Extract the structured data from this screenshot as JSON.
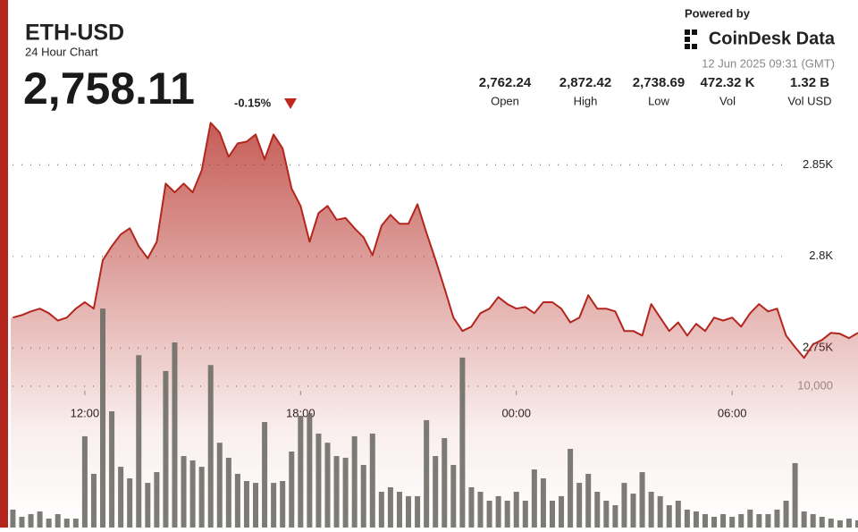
{
  "header": {
    "title": "ETH-USD",
    "subtitle": "24 Hour Chart",
    "price": "2,758.11",
    "change": "-0.15%",
    "powered_by": "Powered by",
    "brand": "CoinDesk Data",
    "timestamp": "12 Jun 2025 09:31 (GMT)",
    "stats": [
      {
        "value": "2,762.24",
        "label": "Open"
      },
      {
        "value": "2,872.42",
        "label": "High"
      },
      {
        "value": "2,738.69",
        "label": "Low"
      },
      {
        "value": "472.32 K",
        "label": "Vol"
      },
      {
        "value": "1.32 B",
        "label": "Vol USD"
      }
    ]
  },
  "chart_data": {
    "type": "line",
    "x": [
      10,
      10.25,
      10.5,
      10.75,
      11,
      11.25,
      11.5,
      11.75,
      12,
      12.25,
      12.5,
      12.75,
      13,
      13.25,
      13.5,
      13.75,
      14,
      14.25,
      14.5,
      14.75,
      15,
      15.25,
      15.5,
      15.75,
      16,
      16.25,
      16.5,
      16.75,
      17,
      17.25,
      17.5,
      17.75,
      18,
      18.25,
      18.5,
      18.75,
      19,
      19.25,
      19.5,
      19.75,
      20,
      20.25,
      20.5,
      20.75,
      21,
      21.25,
      21.5,
      21.75,
      22,
      22.25,
      22.5,
      22.75,
      23,
      23.25,
      23.5,
      23.75,
      24,
      24.25,
      24.5,
      24.75,
      25,
      25.25,
      25.5,
      25.75,
      26,
      26.25,
      26.5,
      26.75,
      27,
      27.25,
      27.5,
      27.75,
      28,
      28.25,
      28.5,
      28.75,
      29,
      29.25,
      29.5,
      29.75,
      30,
      30.25,
      30.5,
      30.75,
      31,
      31.25,
      31.5,
      31.75,
      32,
      32.25,
      32.5,
      32.75,
      33,
      33.25,
      33.5
    ],
    "xlim": [
      9.94,
      33.5
    ],
    "xticks": [
      {
        "value": 12,
        "label": "12:00"
      },
      {
        "value": 18,
        "label": "18:00"
      },
      {
        "value": 24,
        "label": "00:00"
      },
      {
        "value": 30,
        "label": "06:00"
      }
    ],
    "ylim": [
      2652,
      2940
    ],
    "yticks": [
      {
        "value": 2750,
        "label": "2.75K"
      },
      {
        "value": 2800,
        "label": "2.8K"
      },
      {
        "value": 2850,
        "label": "2.85K"
      }
    ],
    "y2lim": [
      0,
      37340
    ],
    "y2ticks": [
      {
        "value": 10000,
        "label": "10,000"
      }
    ],
    "grid": true,
    "series": [
      {
        "color": "#b3261e",
        "values": [
          2766.6,
          2768,
          2770,
          2771.5,
          2769,
          2765,
          2766.6,
          2771.5,
          2775,
          2771.5,
          2798,
          2805.6,
          2812,
          2815.4,
          2805.6,
          2799,
          2808,
          2839.8,
          2835,
          2839.8,
          2835,
          2847,
          2873,
          2867.6,
          2854.4,
          2861.7,
          2862.7,
          2866.6,
          2853,
          2866.6,
          2859,
          2837,
          2827.6,
          2808,
          2823.7,
          2827.6,
          2820,
          2821,
          2815.4,
          2810.5,
          2800.7,
          2816.8,
          2822.7,
          2817.8,
          2817.8,
          2828.5,
          2813,
          2798.3,
          2782.7,
          2766.6,
          2759.3,
          2761.7,
          2769,
          2771.5,
          2777.8,
          2774,
          2771.5,
          2772.4,
          2769,
          2775,
          2775,
          2771.5,
          2764,
          2766.6,
          2778.8,
          2771.5,
          2771.5,
          2770,
          2759.3,
          2759.3,
          2756.8,
          2774,
          2766.6,
          2759.3,
          2764,
          2756.8,
          2763.2,
          2759.3,
          2766.6,
          2765,
          2766.6,
          2761.7,
          2769,
          2774,
          2770,
          2771.5,
          2756.8,
          2750.5,
          2744.6,
          2752,
          2754.4,
          2758.3,
          2757.8,
          2755.4,
          2758.3
        ]
      },
      {
        "type": "bar",
        "axis": "y2",
        "color": "#6e6d66",
        "values": [
          1270,
          760,
          950,
          1140,
          630,
          950,
          630,
          630,
          6460,
          3800,
          15500,
          8230,
          4300,
          3480,
          12200,
          3160,
          3920,
          11080,
          13100,
          5060,
          4750,
          4300,
          11500,
          6000,
          4940,
          3800,
          3290,
          3160,
          7470,
          3160,
          3290,
          5380,
          7910,
          8100,
          6650,
          6000,
          5060,
          4940,
          6460,
          4430,
          6650,
          2530,
          2850,
          2530,
          2220,
          2220,
          7600,
          5060,
          6330,
          4430,
          12030,
          2850,
          2530,
          1900,
          2220,
          1900,
          2530,
          1900,
          4110,
          3480,
          1900,
          2220,
          5570,
          3160,
          3800,
          2530,
          1900,
          1580,
          3160,
          2400,
          3920,
          2530,
          2220,
          1580,
          1900,
          1270,
          1140,
          950,
          760,
          950,
          760,
          950,
          1270,
          950,
          950,
          1270,
          1900,
          4560,
          1140,
          950,
          760,
          630,
          510,
          630,
          510
        ]
      }
    ]
  }
}
